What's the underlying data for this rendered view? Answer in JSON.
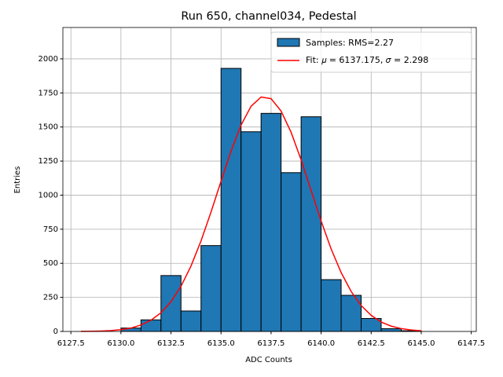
{
  "chart_data": {
    "type": "histogram",
    "title": "Run 650, channel034, Pedestal",
    "xlabel": "ADC Counts",
    "ylabel": "Entries",
    "bins": [
      6130,
      6131,
      6132,
      6133,
      6134,
      6135,
      6136,
      6137,
      6138,
      6139,
      6140,
      6141,
      6142,
      6143,
      6144,
      6145
    ],
    "values": [
      25,
      85,
      410,
      150,
      630,
      1930,
      1465,
      1600,
      1165,
      1575,
      380,
      265,
      95,
      20,
      5
    ],
    "name": "Samples: RMS=2.27",
    "color": "#1f77b4",
    "edgecolor": "#000000",
    "fit": {
      "type": "line",
      "name": "Fit: 𝜇 = 6137.175, 𝜎 = 2.298",
      "color": "#ff0000",
      "x": [
        6128,
        6128.5,
        6129,
        6129.5,
        6130,
        6130.5,
        6131,
        6131.5,
        6132,
        6132.5,
        6133,
        6133.5,
        6134,
        6134.5,
        6135,
        6135.5,
        6136,
        6136.5,
        6137,
        6137.5,
        6138,
        6138.5,
        6139,
        6139.5,
        6140,
        6140.5,
        6141,
        6141.5,
        6142,
        6142.5,
        6143,
        6143.5,
        6144,
        6144.5,
        6145
      ],
      "values": [
        0.6,
        1.4,
        3.1,
        6.5,
        13,
        25,
        47,
        82,
        137,
        218,
        331,
        480,
        664,
        876,
        1102,
        1323,
        1514,
        1652,
        1720,
        1708,
        1617,
        1461,
        1259,
        1034,
        810,
        605,
        432,
        293,
        190,
        118,
        69,
        39,
        21,
        11,
        5
      ]
    },
    "xlim": [
      6127.1,
      6147.75
    ],
    "ylim": [
      0,
      2230
    ],
    "xticks": [
      6127.5,
      {
        "value": 6130,
        "label": "6130.0"
      },
      6132.5,
      {
        "value": 6135,
        "label": "6135.0"
      },
      6137.5,
      {
        "value": 6140,
        "label": "6140.0"
      },
      6142.5,
      {
        "value": 6145,
        "label": "6145.0"
      },
      6147.5
    ],
    "yticks": [
      0,
      250,
      500,
      750,
      1000,
      1250,
      1500,
      1750,
      2000
    ],
    "grid": true,
    "legend": "upper right"
  }
}
